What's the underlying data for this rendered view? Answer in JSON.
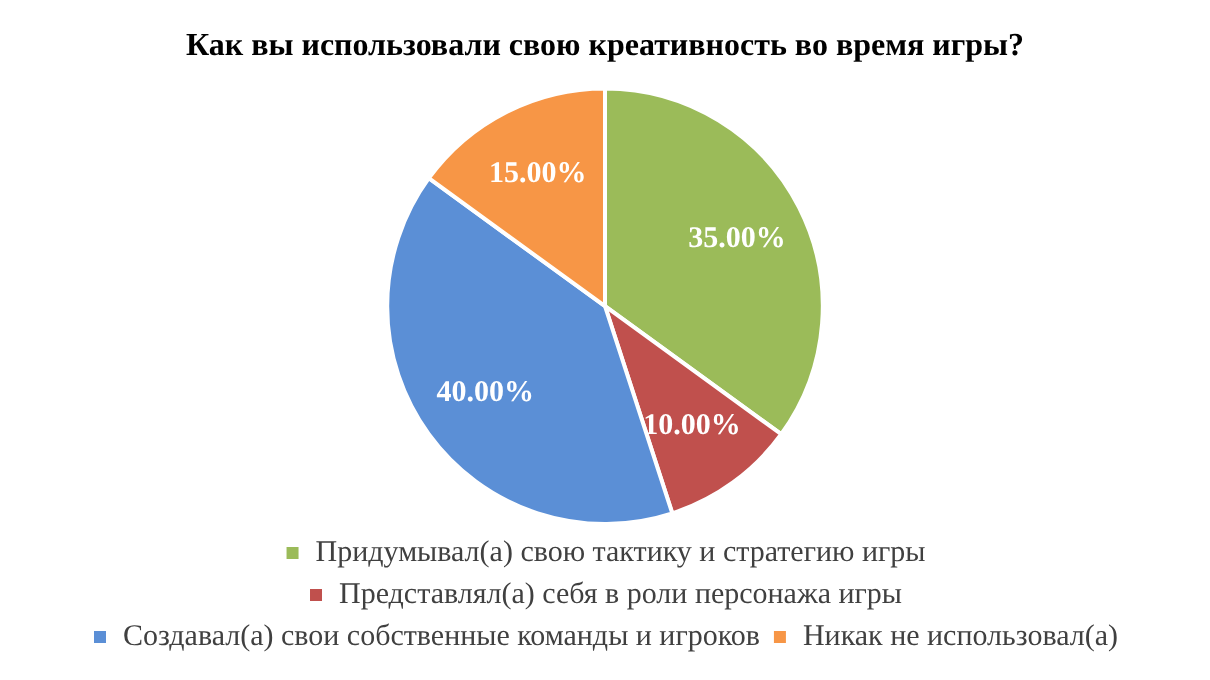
{
  "chart_data": {
    "type": "pie",
    "title": "Как вы использовали свою креативность во время игры?",
    "categories": [
      "Придумывал(а) свою тактику и стратегию игры",
      "Представлял(а) себя в роли персонажа игры",
      "Создавал(а) свои собственные команды и игроков",
      "Никак не использовал(а)"
    ],
    "values": [
      35,
      10,
      40,
      15
    ],
    "colors": [
      "#9bbb59",
      "#c0504d",
      "#5b8fd6",
      "#f79646"
    ],
    "value_labels": [
      "35.00%",
      "10.00%",
      "40.00%",
      "15.00%"
    ],
    "legend": "bottom"
  }
}
